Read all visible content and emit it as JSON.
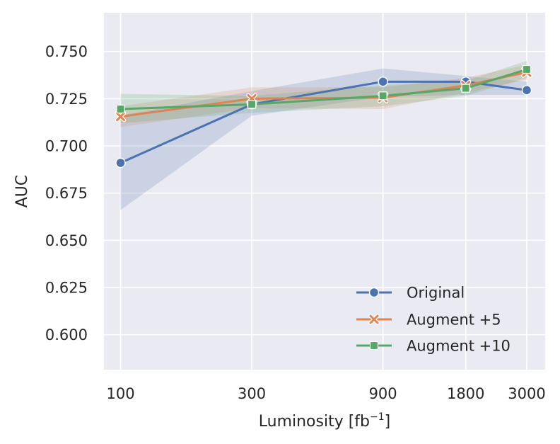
{
  "chart_data": {
    "type": "line",
    "title": "",
    "xlabel": "Luminosity [fb",
    "xlabel_sup": "−1",
    "xlabel_close": "]",
    "ylabel": "AUC",
    "x_scale": "log",
    "x": [
      100,
      300,
      900,
      1800,
      3000
    ],
    "x_tick_labels": [
      "100",
      "300",
      "900",
      "1800",
      "3000"
    ],
    "xlim": [
      87,
      3500
    ],
    "ylim": [
      0.5815,
      0.7705
    ],
    "y_ticks": [
      0.6,
      0.625,
      0.65,
      0.675,
      0.7,
      0.725,
      0.75
    ],
    "y_tick_labels": [
      "0.600",
      "0.625",
      "0.650",
      "0.675",
      "0.700",
      "0.725",
      "0.750"
    ],
    "grid": true,
    "legend_position": "bottom-right",
    "series": [
      {
        "name": "Original",
        "color": "#4c72b0",
        "marker": "circle",
        "values": [
          0.691,
          0.722,
          0.734,
          0.734,
          0.7295
        ],
        "lower": [
          0.666,
          0.716,
          0.726,
          0.727,
          0.727
        ],
        "upper": [
          0.716,
          0.729,
          0.741,
          0.737,
          0.734
        ]
      },
      {
        "name": "Augment +5",
        "color": "#dd8452",
        "marker": "x",
        "values": [
          0.7155,
          0.725,
          0.7255,
          0.732,
          0.739
        ],
        "lower": [
          0.71,
          0.72,
          0.7195,
          0.728,
          0.735
        ],
        "upper": [
          0.721,
          0.731,
          0.731,
          0.736,
          0.743
        ]
      },
      {
        "name": "Augment +10",
        "color": "#55a868",
        "marker": "square",
        "values": [
          0.7195,
          0.722,
          0.7265,
          0.7305,
          0.7405
        ],
        "lower": [
          0.712,
          0.7175,
          0.721,
          0.7265,
          0.736
        ],
        "upper": [
          0.7275,
          0.7265,
          0.732,
          0.7345,
          0.745
        ]
      }
    ]
  },
  "style": {
    "plot_background": "#eaeaf2",
    "grid_color": "#ffffff",
    "text_color": "#262626"
  }
}
